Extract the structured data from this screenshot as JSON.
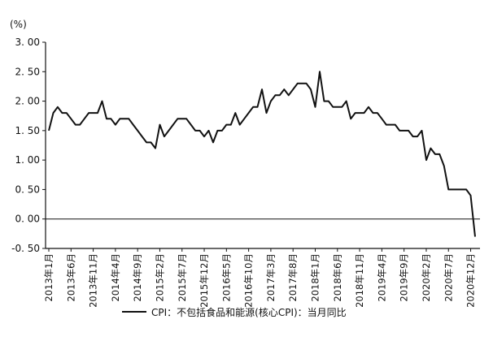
{
  "chart_data": {
    "type": "line",
    "unit_label": "(%)",
    "title": "",
    "xlabel": "",
    "ylabel": "",
    "ylim": [
      -0.5,
      3.0
    ],
    "y_ticks": [
      "3. 00",
      "2. 50",
      "2. 00",
      "1. 50",
      "1. 00",
      "0. 50",
      "0. 00",
      "-0. 50"
    ],
    "y_tick_values": [
      3.0,
      2.5,
      2.0,
      1.5,
      1.0,
      0.5,
      0.0,
      -0.5
    ],
    "x_tick_labels": [
      "2013年1月",
      "2013年6月",
      "2013年11月",
      "2014年4月",
      "2014年9月",
      "2015年2月",
      "2015年7月",
      "2015年12月",
      "2016年5月",
      "2016年10月",
      "2017年3月",
      "2017年8月",
      "2018年1月",
      "2018年6月",
      "2018年11月",
      "2019年4月",
      "2019年9月",
      "2020年2月",
      "2020年7月",
      "2020年12月"
    ],
    "grid": false,
    "legend_position": "bottom-center",
    "series": [
      {
        "name": "CPI：不包括食品和能源(核心CPI)：当月同比",
        "color": "#111111",
        "x": [
          "2013-01",
          "2013-02",
          "2013-03",
          "2013-04",
          "2013-05",
          "2013-06",
          "2013-07",
          "2013-08",
          "2013-09",
          "2013-10",
          "2013-11",
          "2013-12",
          "2014-01",
          "2014-02",
          "2014-03",
          "2014-04",
          "2014-05",
          "2014-06",
          "2014-07",
          "2014-08",
          "2014-09",
          "2014-10",
          "2014-11",
          "2014-12",
          "2015-01",
          "2015-02",
          "2015-03",
          "2015-04",
          "2015-05",
          "2015-06",
          "2015-07",
          "2015-08",
          "2015-09",
          "2015-10",
          "2015-11",
          "2015-12",
          "2016-01",
          "2016-02",
          "2016-03",
          "2016-04",
          "2016-05",
          "2016-06",
          "2016-07",
          "2016-08",
          "2016-09",
          "2016-10",
          "2016-11",
          "2016-12",
          "2017-01",
          "2017-02",
          "2017-03",
          "2017-04",
          "2017-05",
          "2017-06",
          "2017-07",
          "2017-08",
          "2017-09",
          "2017-10",
          "2017-11",
          "2017-12",
          "2018-01",
          "2018-02",
          "2018-03",
          "2018-04",
          "2018-05",
          "2018-06",
          "2018-07",
          "2018-08",
          "2018-09",
          "2018-10",
          "2018-11",
          "2018-12",
          "2019-01",
          "2019-02",
          "2019-03",
          "2019-04",
          "2019-05",
          "2019-06",
          "2019-07",
          "2019-08",
          "2019-09",
          "2019-10",
          "2019-11",
          "2019-12",
          "2020-01",
          "2020-02",
          "2020-03",
          "2020-04",
          "2020-05",
          "2020-06",
          "2020-07",
          "2020-08",
          "2020-09",
          "2020-10",
          "2020-11",
          "2020-12",
          "2021-01"
        ],
        "values": [
          1.5,
          1.8,
          1.9,
          1.8,
          1.8,
          1.7,
          1.6,
          1.6,
          1.7,
          1.8,
          1.8,
          1.8,
          2.0,
          1.7,
          1.7,
          1.6,
          1.7,
          1.7,
          1.7,
          1.6,
          1.5,
          1.4,
          1.3,
          1.3,
          1.2,
          1.6,
          1.4,
          1.5,
          1.6,
          1.7,
          1.7,
          1.7,
          1.6,
          1.5,
          1.5,
          1.4,
          1.5,
          1.3,
          1.5,
          1.5,
          1.6,
          1.6,
          1.8,
          1.6,
          1.7,
          1.8,
          1.9,
          1.9,
          2.2,
          1.8,
          2.0,
          2.1,
          2.1,
          2.2,
          2.1,
          2.2,
          2.3,
          2.3,
          2.3,
          2.2,
          1.9,
          2.5,
          2.0,
          2.0,
          1.9,
          1.9,
          1.9,
          2.0,
          1.7,
          1.8,
          1.8,
          1.8,
          1.9,
          1.8,
          1.8,
          1.7,
          1.6,
          1.6,
          1.6,
          1.5,
          1.5,
          1.5,
          1.4,
          1.4,
          1.5,
          1.0,
          1.2,
          1.1,
          1.1,
          0.9,
          0.5,
          0.5,
          0.5,
          0.5,
          0.5,
          0.4,
          -0.3
        ]
      }
    ]
  }
}
